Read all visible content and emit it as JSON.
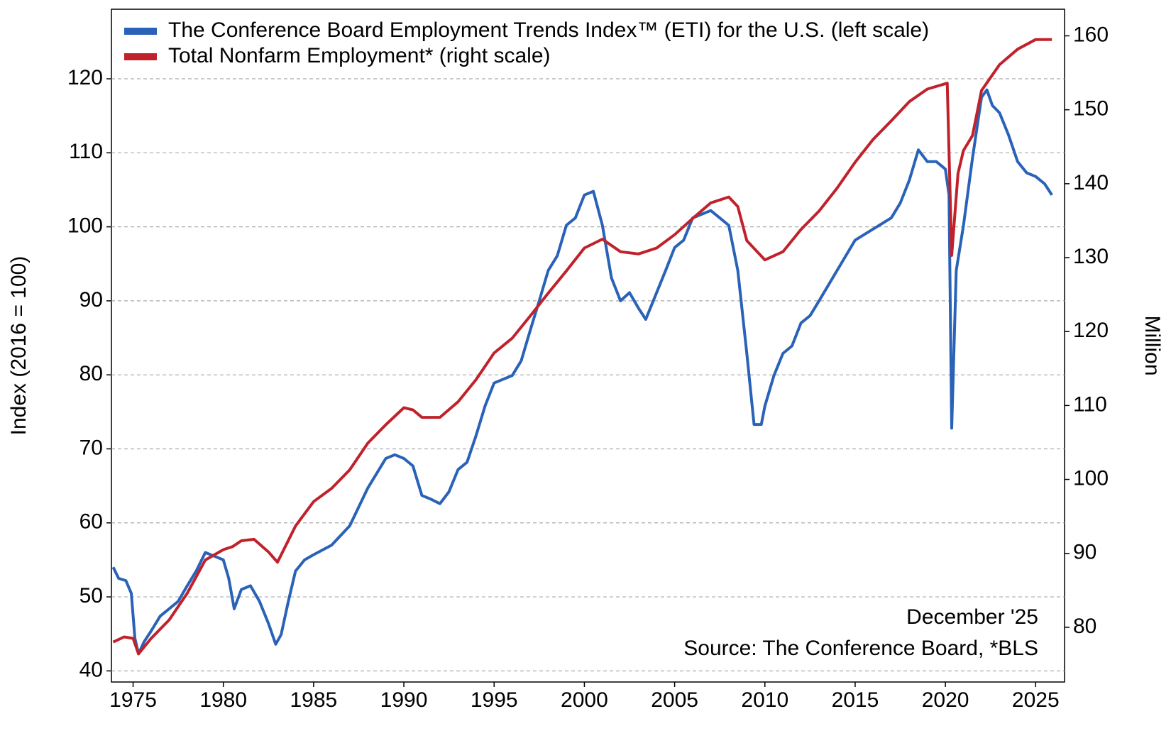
{
  "chart_data": {
    "type": "line",
    "y_label": "Index (2016 = 100)",
    "y2_label": "Million",
    "annotations": [
      "December '25",
      "Source: The Conference Board, *BLS"
    ],
    "xlim": [
      1973.8,
      2026.6
    ],
    "xticks": [
      1975,
      1980,
      1985,
      1990,
      1995,
      2000,
      2005,
      2010,
      2015,
      2020,
      2025
    ],
    "ylim": [
      38.5,
      129.4
    ],
    "yticks": [
      40,
      50,
      60,
      70,
      80,
      90,
      100,
      110,
      120
    ],
    "y2lim": [
      72.6,
      163.6
    ],
    "y2ticks": [
      80,
      90,
      100,
      110,
      120,
      130,
      140,
      150,
      160
    ],
    "grid": true,
    "legend": "upper left",
    "series": [
      {
        "name": "The Conference Board Employment Trends Index™ (ETI) for the U.S. (left scale)",
        "color": "#2a62b8",
        "axis": "y",
        "x": [
          1973.9,
          1974.2,
          1974.6,
          1974.9,
          1975.1,
          1975.3,
          1975.6,
          1976,
          1976.5,
          1977,
          1977.5,
          1978,
          1978.5,
          1979,
          1979.5,
          1980,
          1980.3,
          1980.6,
          1981,
          1981.5,
          1982,
          1982.5,
          1982.9,
          1983.2,
          1983.6,
          1984,
          1984.5,
          1985,
          1986,
          1987,
          1988,
          1989,
          1989.5,
          1990,
          1990.5,
          1991,
          1991.5,
          1992,
          1992.5,
          1993,
          1993.5,
          1994,
          1994.5,
          1995,
          1996,
          1996.5,
          1997,
          1997.5,
          1998,
          1998.5,
          1999,
          1999.5,
          2000,
          2000.5,
          2001,
          2001.5,
          2002,
          2002.5,
          2003,
          2003.4,
          2004,
          2004.5,
          2005,
          2005.5,
          2006,
          2006.5,
          2007,
          2007.5,
          2008,
          2008.5,
          2009,
          2009.4,
          2009.8,
          2010,
          2010.5,
          2011,
          2011.5,
          2012,
          2012.5,
          2013,
          2014,
          2015,
          2016,
          2017,
          2017.5,
          2018,
          2018.5,
          2019,
          2019.5,
          2020,
          2020.2,
          2020.35,
          2020.6,
          2021,
          2021.5,
          2022,
          2022.3,
          2022.6,
          2023,
          2023.5,
          2024,
          2024.5,
          2025,
          2025.5,
          2025.9
        ],
        "values": [
          54,
          52.5,
          52.2,
          50.5,
          44.4,
          42.3,
          43.9,
          45.4,
          47.4,
          48.4,
          49.4,
          51.5,
          53.5,
          56,
          55.5,
          55,
          52.5,
          48.4,
          51,
          51.5,
          49.4,
          46.4,
          43.6,
          44.9,
          49.4,
          53.5,
          55,
          55.7,
          57,
          59.6,
          64.7,
          68.7,
          69.2,
          68.7,
          67.7,
          63.7,
          63.2,
          62.6,
          64.2,
          67.2,
          68.2,
          71.8,
          75.8,
          78.9,
          79.9,
          81.9,
          86,
          90,
          94.1,
          96.1,
          100.2,
          101.2,
          104.3,
          104.8,
          100.2,
          93.1,
          90,
          91.1,
          89,
          87.5,
          91.1,
          94.1,
          97.2,
          98.2,
          101.2,
          101.7,
          102.2,
          101.2,
          100.2,
          94.1,
          82.9,
          73.3,
          73.3,
          75.8,
          79.9,
          82.9,
          83.9,
          87,
          88,
          90,
          94.1,
          98.2,
          99.7,
          101.2,
          103.2,
          106.3,
          110.4,
          108.8,
          108.8,
          107.8,
          104.3,
          72.8,
          94.1,
          100.2,
          109.3,
          117.5,
          118.5,
          116.4,
          115.4,
          112.4,
          108.8,
          107.3,
          106.8,
          105.8,
          104.3
        ]
      },
      {
        "name": "Total Nonfarm Employment* (right scale)",
        "color": "#c0222c",
        "axis": "y2",
        "x": [
          1973.9,
          1974.5,
          1975,
          1975.3,
          1976,
          1977,
          1978,
          1979,
          1980,
          1980.5,
          1981,
          1981.7,
          1982.5,
          1983,
          1984,
          1985,
          1986,
          1987,
          1988,
          1989,
          1990,
          1990.5,
          1991,
          1992,
          1993,
          1994,
          1995,
          1996,
          1997,
          1998,
          1999,
          2000,
          2001,
          2002,
          2003,
          2004,
          2005,
          2006,
          2007,
          2008,
          2008.5,
          2009,
          2010,
          2011,
          2012,
          2013,
          2014,
          2015,
          2016,
          2017,
          2018,
          2019,
          2020.1,
          2020.35,
          2020.7,
          2021,
          2021.5,
          2022,
          2023,
          2024,
          2025,
          2025.9
        ],
        "values": [
          78,
          78.7,
          78.5,
          76.4,
          78.5,
          81,
          84.6,
          89.1,
          90.5,
          90.9,
          91.7,
          91.9,
          90.2,
          88.8,
          93.7,
          97,
          98.8,
          101.3,
          104.9,
          107.4,
          109.7,
          109.4,
          108.4,
          108.4,
          110.5,
          113.5,
          117.1,
          119.1,
          122.1,
          125.2,
          128.2,
          131.3,
          132.5,
          130.8,
          130.5,
          131.3,
          133.1,
          135.3,
          137.4,
          138.2,
          136.9,
          132.3,
          129.7,
          130.8,
          133.8,
          136.3,
          139.4,
          142.9,
          146,
          148.5,
          151.1,
          152.8,
          153.6,
          130.3,
          141.4,
          144.5,
          146.5,
          152.6,
          156.1,
          158.2,
          159.5,
          159.5
        ]
      }
    ]
  }
}
